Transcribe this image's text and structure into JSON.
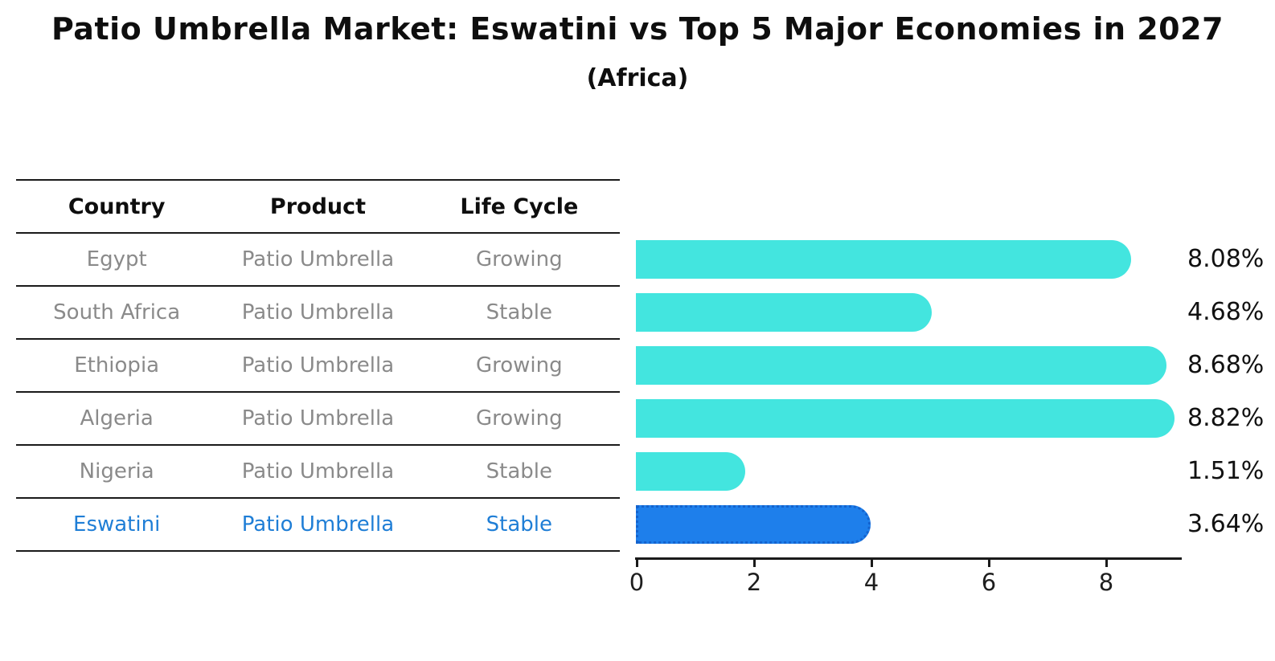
{
  "title": "Patio Umbrella Market: Eswatini vs Top 5 Major Economies in 2027",
  "subtitle": "(Africa)",
  "table": {
    "columns": [
      "Country",
      "Product",
      "Life Cycle"
    ],
    "rows": [
      {
        "country": "Egypt",
        "product": "Patio Umbrella",
        "life_cycle": "Growing",
        "highlight": false
      },
      {
        "country": "South Africa",
        "product": "Patio Umbrella",
        "life_cycle": "Stable",
        "highlight": false
      },
      {
        "country": "Ethiopia",
        "product": "Patio Umbrella",
        "life_cycle": "Growing",
        "highlight": false
      },
      {
        "country": "Algeria",
        "product": "Patio Umbrella",
        "life_cycle": "Growing",
        "highlight": false
      },
      {
        "country": "Nigeria",
        "product": "Patio Umbrella",
        "life_cycle": "Stable",
        "highlight": false
      },
      {
        "country": "Eswatini",
        "product": "Patio Umbrella",
        "life_cycle": "Stable",
        "highlight": true
      }
    ]
  },
  "chart_data": {
    "type": "bar",
    "orientation": "horizontal",
    "title": "Patio Umbrella Market: Eswatini vs Top 5 Major Economies in 2027",
    "subtitle": "(Africa)",
    "categories": [
      "Egypt",
      "South Africa",
      "Ethiopia",
      "Algeria",
      "Nigeria",
      "Eswatini"
    ],
    "values": [
      8.08,
      4.68,
      8.68,
      8.82,
      1.51,
      3.64
    ],
    "value_labels": [
      "8.08%",
      "4.68%",
      "8.68%",
      "8.82%",
      "1.51%",
      "3.64%"
    ],
    "x_ticks": [
      "0",
      "2",
      "4",
      "6",
      "8"
    ],
    "xlim": [
      0,
      9.3
    ],
    "xlabel": "",
    "ylabel": "",
    "grid": false,
    "legend": null,
    "bar_color": "#43e5df",
    "highlight_bar_color": "#1e7feb",
    "highlight_border_color": "#1463ce",
    "highlight_index": 5,
    "highlight_text_color": "#1f7ed6"
  }
}
